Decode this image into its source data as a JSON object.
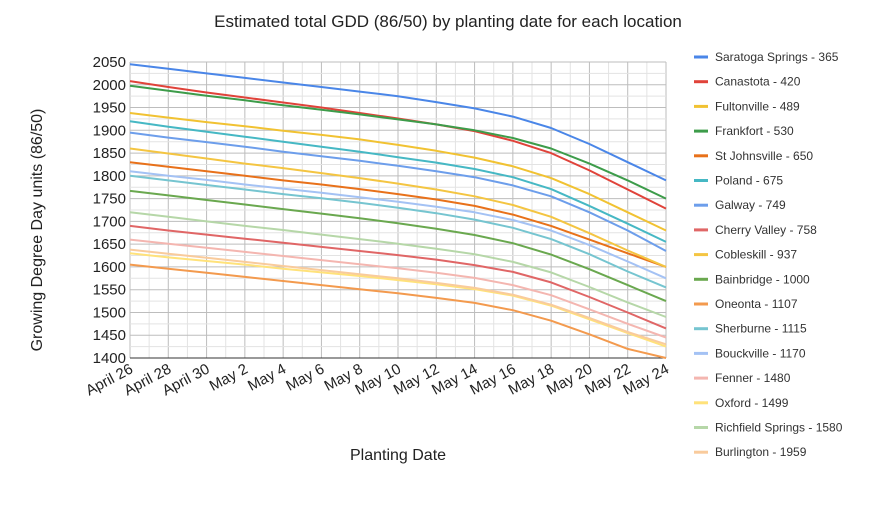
{
  "chart_data": {
    "type": "line",
    "title": "Estimated total GDD (86/50) by planting date for each location",
    "xlabel": "Planting Date",
    "ylabel": "Growing Degree Day units (86/50)",
    "ylim": [
      1400,
      2050
    ],
    "yticks": [
      1400,
      1450,
      1500,
      1550,
      1600,
      1650,
      1700,
      1750,
      1800,
      1850,
      1900,
      1950,
      2000,
      2050
    ],
    "xticks": [
      "April 26",
      "April 28",
      "April 30",
      "May 2",
      "May 4",
      "May 6",
      "May 8",
      "May 10",
      "May 12",
      "May 14",
      "May 16",
      "May 18",
      "May 20",
      "May 22",
      "May 24"
    ],
    "x": [
      "April 26",
      "April 28",
      "April 30",
      "May 2",
      "May 4",
      "May 6",
      "May 8",
      "May 10",
      "May 12",
      "May 14",
      "May 16",
      "May 18",
      "May 20",
      "May 22",
      "May 24"
    ],
    "grid": true,
    "legend_position": "right",
    "series": [
      {
        "name": "Saratoga Springs - 365",
        "color": "#4a86e8",
        "values": [
          2045,
          2035,
          2025,
          2015,
          2005,
          1995,
          1985,
          1975,
          1962,
          1948,
          1930,
          1905,
          1870,
          1830,
          1790
        ]
      },
      {
        "name": "Canastota - 420",
        "color": "#e0433a",
        "values": [
          2008,
          1995,
          1983,
          1972,
          1961,
          1950,
          1938,
          1926,
          1913,
          1898,
          1877,
          1850,
          1812,
          1770,
          1728
        ]
      },
      {
        "name": "Fultonville - 489",
        "color": "#f1c232",
        "values": [
          1938,
          1928,
          1918,
          1909,
          1899,
          1890,
          1880,
          1868,
          1855,
          1840,
          1821,
          1795,
          1760,
          1720,
          1680
        ]
      },
      {
        "name": "Frankfort - 530",
        "color": "#3d9c4a",
        "values": [
          1998,
          1987,
          1976,
          1966,
          1955,
          1945,
          1935,
          1924,
          1913,
          1900,
          1883,
          1860,
          1827,
          1790,
          1750
        ]
      },
      {
        "name": "St Johnsville - 650",
        "color": "#e8711a",
        "values": [
          1830,
          1820,
          1810,
          1800,
          1790,
          1781,
          1771,
          1760,
          1748,
          1734,
          1715,
          1690,
          1660,
          1630,
          1600
        ]
      },
      {
        "name": "Poland - 675",
        "color": "#46b8c4",
        "values": [
          1920,
          1908,
          1897,
          1886,
          1875,
          1864,
          1853,
          1841,
          1829,
          1815,
          1797,
          1771,
          1734,
          1695,
          1655
        ]
      },
      {
        "name": "Galway - 749",
        "color": "#6d9eeb",
        "values": [
          1895,
          1884,
          1874,
          1864,
          1853,
          1843,
          1833,
          1822,
          1810,
          1797,
          1779,
          1755,
          1720,
          1680,
          1635
        ]
      },
      {
        "name": "Cherry Valley - 758",
        "color": "#e06666",
        "values": [
          1690,
          1680,
          1671,
          1662,
          1653,
          1644,
          1635,
          1626,
          1616,
          1604,
          1589,
          1566,
          1534,
          1500,
          1465
        ]
      },
      {
        "name": "Cobleskill - 937",
        "color": "#f4c542",
        "values": [
          1860,
          1849,
          1838,
          1827,
          1817,
          1806,
          1795,
          1783,
          1770,
          1755,
          1736,
          1710,
          1674,
          1636,
          1600
        ]
      },
      {
        "name": "Bainbridge - 1000",
        "color": "#6aa84f",
        "values": [
          1767,
          1757,
          1747,
          1737,
          1727,
          1717,
          1707,
          1696,
          1684,
          1670,
          1652,
          1627,
          1595,
          1560,
          1525
        ]
      },
      {
        "name": "Oneonta - 1107",
        "color": "#f39a4e",
        "values": [
          1605,
          1596,
          1587,
          1578,
          1569,
          1560,
          1551,
          1542,
          1532,
          1521,
          1505,
          1482,
          1452,
          1420,
          1400
        ]
      },
      {
        "name": "Sherburne - 1115",
        "color": "#76c5d0",
        "values": [
          1800,
          1790,
          1780,
          1770,
          1760,
          1751,
          1741,
          1730,
          1718,
          1704,
          1686,
          1661,
          1628,
          1590,
          1555
        ]
      },
      {
        "name": "Bouckville - 1170",
        "color": "#a4c2f4",
        "values": [
          1810,
          1800,
          1791,
          1781,
          1772,
          1763,
          1753,
          1743,
          1732,
          1720,
          1703,
          1680,
          1648,
          1612,
          1575
        ]
      },
      {
        "name": "Fenner - 1480",
        "color": "#f4b6b0",
        "values": [
          1660,
          1651,
          1642,
          1633,
          1624,
          1615,
          1606,
          1597,
          1587,
          1576,
          1560,
          1538,
          1507,
          1475,
          1445
        ]
      },
      {
        "name": "Oxford - 1499",
        "color": "#ffe27a",
        "values": [
          1630,
          1621,
          1613,
          1605,
          1596,
          1588,
          1580,
          1571,
          1562,
          1551,
          1537,
          1515,
          1485,
          1455,
          1425
        ]
      },
      {
        "name": "Richfield Springs - 1580",
        "color": "#b6d7a8",
        "values": [
          1720,
          1710,
          1700,
          1690,
          1681,
          1671,
          1661,
          1651,
          1640,
          1628,
          1611,
          1588,
          1556,
          1522,
          1490
        ]
      },
      {
        "name": "Burlington - 1959",
        "color": "#f9cb9c",
        "values": [
          1638,
          1629,
          1620,
          1611,
          1602,
          1593,
          1584,
          1575,
          1565,
          1554,
          1539,
          1517,
          1488,
          1457,
          1430
        ]
      }
    ]
  }
}
